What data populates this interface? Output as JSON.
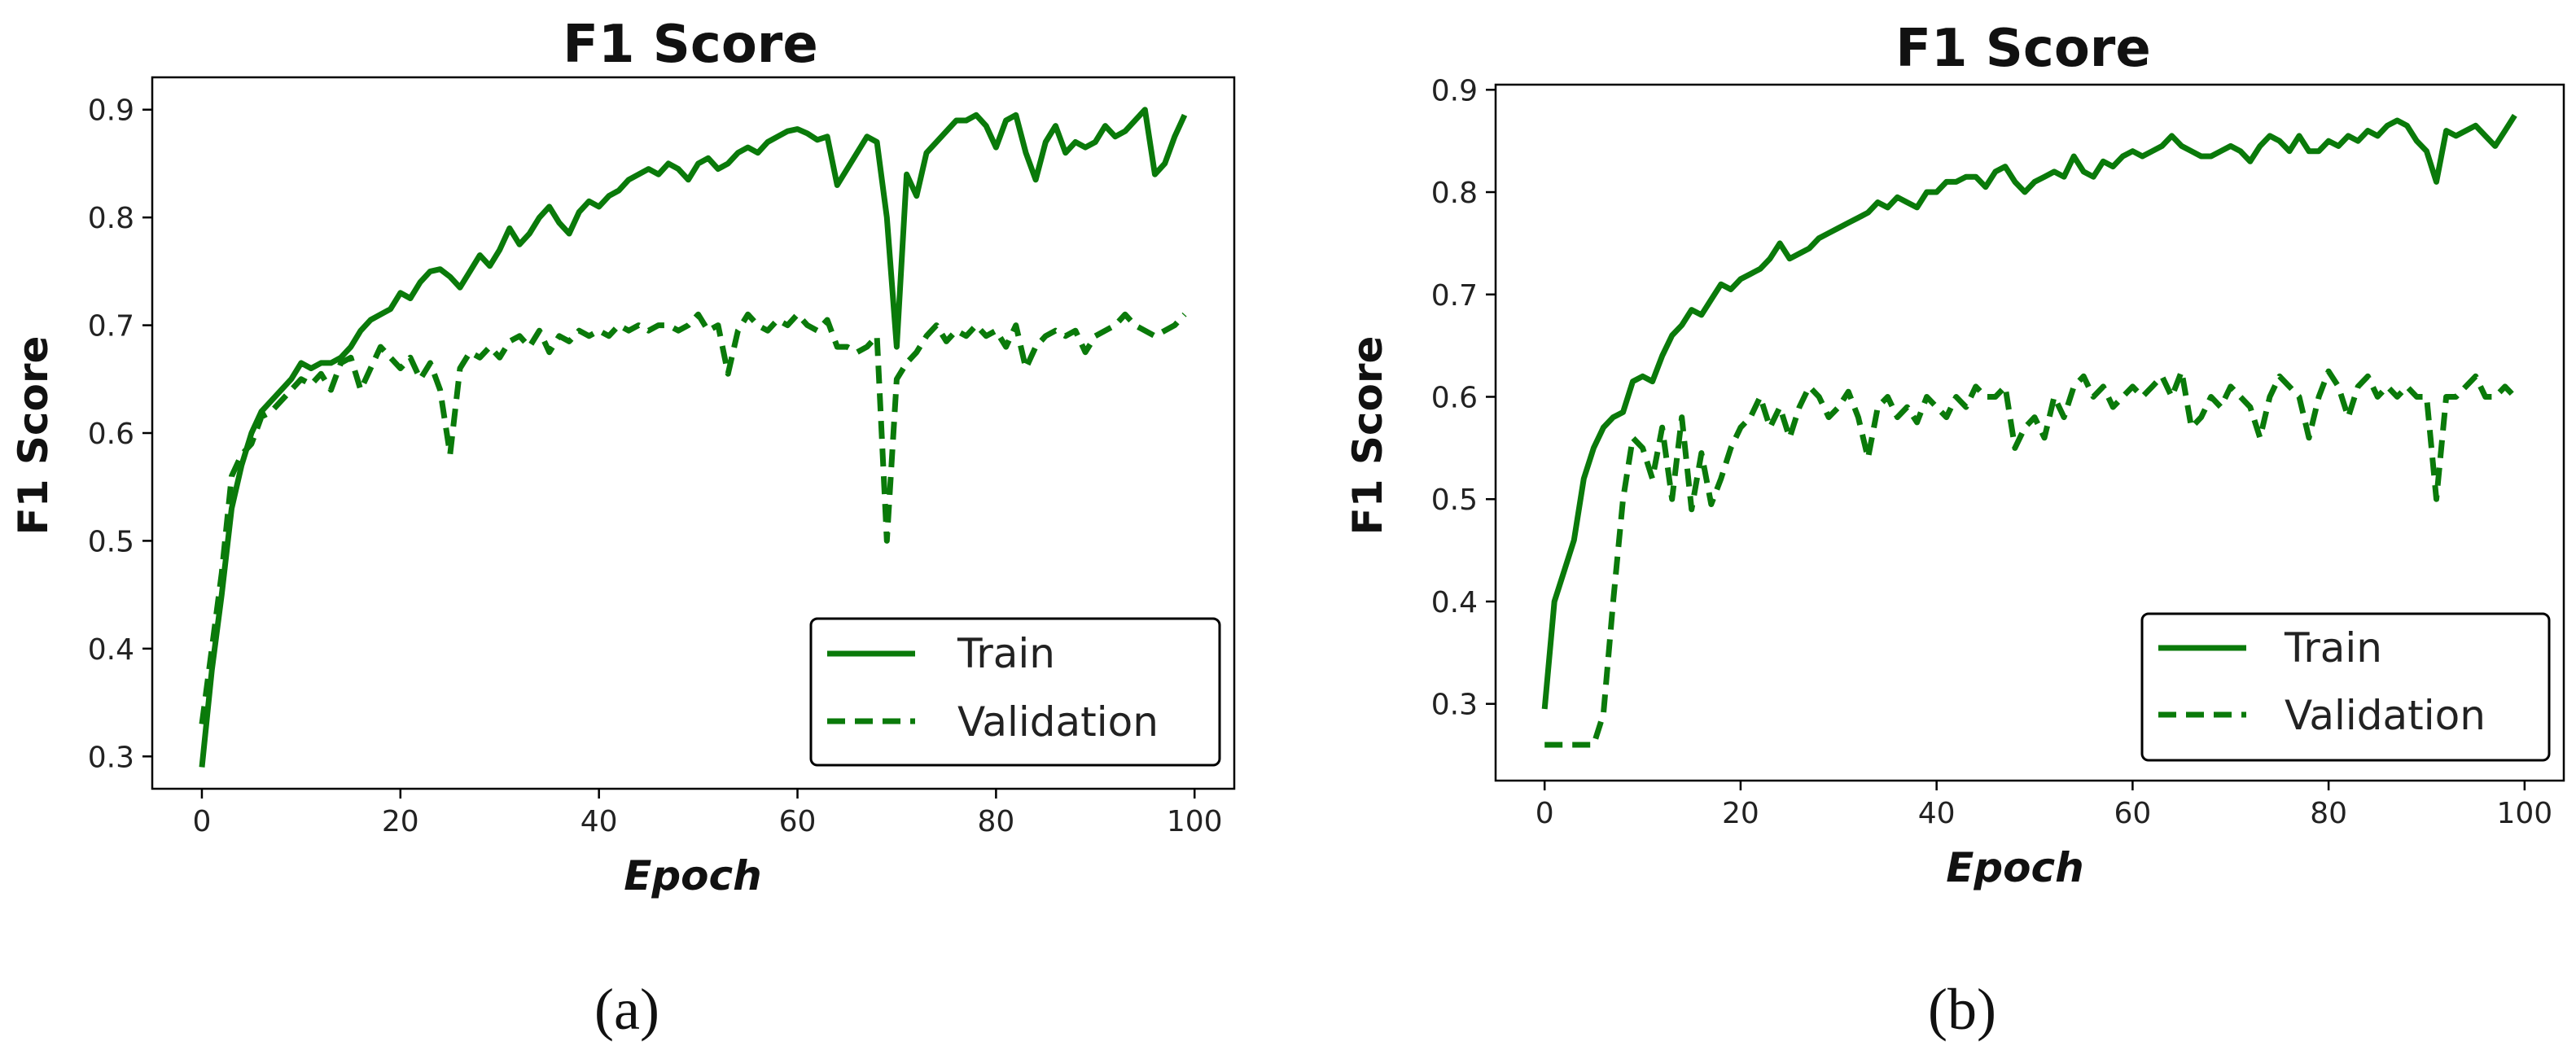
{
  "colors": {
    "train": "#0a7a0a",
    "validation": "#0a7a0a"
  },
  "chart_data": [
    {
      "type": "line",
      "title": "F1 Score",
      "xlabel": "Epoch",
      "ylabel": "F1 Score",
      "panel_label": "(a)",
      "xlim": [
        -5,
        104
      ],
      "ylim": [
        0.27,
        0.93
      ],
      "xticks": [
        0,
        20,
        40,
        60,
        80,
        100
      ],
      "yticks": [
        0.3,
        0.4,
        0.5,
        0.6,
        0.7,
        0.8,
        0.9
      ],
      "legend_position": "lower-right",
      "series": [
        {
          "name": "Train",
          "style": "solid",
          "values": [
            0.29,
            0.38,
            0.45,
            0.53,
            0.57,
            0.6,
            0.62,
            0.63,
            0.64,
            0.65,
            0.665,
            0.66,
            0.665,
            0.665,
            0.67,
            0.68,
            0.695,
            0.705,
            0.71,
            0.715,
            0.73,
            0.725,
            0.74,
            0.75,
            0.752,
            0.745,
            0.735,
            0.75,
            0.765,
            0.755,
            0.77,
            0.79,
            0.775,
            0.785,
            0.8,
            0.81,
            0.795,
            0.785,
            0.805,
            0.815,
            0.81,
            0.82,
            0.825,
            0.835,
            0.84,
            0.845,
            0.84,
            0.85,
            0.845,
            0.835,
            0.85,
            0.855,
            0.845,
            0.85,
            0.86,
            0.865,
            0.86,
            0.87,
            0.875,
            0.88,
            0.882,
            0.878,
            0.872,
            0.875,
            0.83,
            0.845,
            0.86,
            0.875,
            0.87,
            0.8,
            0.68,
            0.84,
            0.82,
            0.86,
            0.87,
            0.88,
            0.89,
            0.89,
            0.895,
            0.885,
            0.865,
            0.89,
            0.895,
            0.86,
            0.835,
            0.87,
            0.885,
            0.86,
            0.87,
            0.865,
            0.87,
            0.885,
            0.875,
            0.88,
            0.89,
            0.9,
            0.84,
            0.85,
            0.875,
            0.895
          ]
        },
        {
          "name": "Validation",
          "style": "dashed",
          "values": [
            0.33,
            0.4,
            0.47,
            0.56,
            0.58,
            0.59,
            0.615,
            0.62,
            0.63,
            0.64,
            0.65,
            0.645,
            0.655,
            0.64,
            0.665,
            0.67,
            0.64,
            0.66,
            0.68,
            0.67,
            0.66,
            0.67,
            0.65,
            0.665,
            0.64,
            0.58,
            0.66,
            0.675,
            0.67,
            0.68,
            0.67,
            0.685,
            0.69,
            0.68,
            0.695,
            0.675,
            0.69,
            0.685,
            0.695,
            0.69,
            0.695,
            0.69,
            0.7,
            0.695,
            0.7,
            0.695,
            0.7,
            0.7,
            0.695,
            0.7,
            0.71,
            0.695,
            0.7,
            0.655,
            0.695,
            0.71,
            0.7,
            0.695,
            0.705,
            0.7,
            0.71,
            0.7,
            0.695,
            0.705,
            0.68,
            0.68,
            0.675,
            0.68,
            0.69,
            0.5,
            0.65,
            0.665,
            0.675,
            0.69,
            0.7,
            0.685,
            0.695,
            0.69,
            0.7,
            0.69,
            0.695,
            0.68,
            0.7,
            0.66,
            0.68,
            0.69,
            0.695,
            0.69,
            0.695,
            0.675,
            0.69,
            0.695,
            0.7,
            0.71,
            0.7,
            0.695,
            0.69,
            0.695,
            0.7,
            0.71
          ]
        }
      ]
    },
    {
      "type": "line",
      "title": "F1 Score",
      "xlabel": "Epoch",
      "ylabel": "F1 Score",
      "panel_label": "(b)",
      "xlim": [
        -5,
        104
      ],
      "ylim": [
        0.225,
        0.905
      ],
      "xticks": [
        0,
        20,
        40,
        60,
        80,
        100
      ],
      "yticks": [
        0.3,
        0.4,
        0.5,
        0.6,
        0.7,
        0.8,
        0.9
      ],
      "legend_position": "lower-right",
      "series": [
        {
          "name": "Train",
          "style": "solid",
          "values": [
            0.295,
            0.4,
            0.43,
            0.46,
            0.52,
            0.55,
            0.57,
            0.58,
            0.585,
            0.615,
            0.62,
            0.615,
            0.64,
            0.66,
            0.67,
            0.685,
            0.68,
            0.695,
            0.71,
            0.705,
            0.715,
            0.72,
            0.725,
            0.735,
            0.75,
            0.735,
            0.74,
            0.745,
            0.755,
            0.76,
            0.765,
            0.77,
            0.775,
            0.78,
            0.79,
            0.785,
            0.795,
            0.79,
            0.785,
            0.8,
            0.8,
            0.81,
            0.81,
            0.815,
            0.815,
            0.805,
            0.82,
            0.825,
            0.81,
            0.8,
            0.81,
            0.815,
            0.82,
            0.815,
            0.835,
            0.82,
            0.815,
            0.83,
            0.825,
            0.835,
            0.84,
            0.835,
            0.84,
            0.845,
            0.855,
            0.845,
            0.84,
            0.835,
            0.835,
            0.84,
            0.845,
            0.84,
            0.83,
            0.845,
            0.855,
            0.85,
            0.84,
            0.855,
            0.84,
            0.84,
            0.85,
            0.845,
            0.855,
            0.85,
            0.86,
            0.855,
            0.865,
            0.87,
            0.865,
            0.85,
            0.84,
            0.81,
            0.86,
            0.855,
            0.86,
            0.865,
            0.855,
            0.845,
            0.86,
            0.875
          ]
        },
        {
          "name": "Validation",
          "style": "dashed",
          "values": [
            0.26,
            0.26,
            0.26,
            0.26,
            0.26,
            0.26,
            0.29,
            0.4,
            0.5,
            0.56,
            0.55,
            0.52,
            0.57,
            0.5,
            0.58,
            0.49,
            0.545,
            0.495,
            0.52,
            0.55,
            0.57,
            0.58,
            0.6,
            0.57,
            0.59,
            0.56,
            0.59,
            0.61,
            0.6,
            0.58,
            0.59,
            0.605,
            0.58,
            0.54,
            0.59,
            0.6,
            0.58,
            0.59,
            0.575,
            0.6,
            0.59,
            0.58,
            0.6,
            0.59,
            0.61,
            0.6,
            0.6,
            0.61,
            0.55,
            0.57,
            0.58,
            0.56,
            0.6,
            0.58,
            0.61,
            0.62,
            0.6,
            0.61,
            0.59,
            0.6,
            0.61,
            0.6,
            0.61,
            0.62,
            0.6,
            0.625,
            0.57,
            0.58,
            0.6,
            0.59,
            0.61,
            0.6,
            0.59,
            0.56,
            0.6,
            0.62,
            0.61,
            0.6,
            0.56,
            0.6,
            0.625,
            0.61,
            0.58,
            0.61,
            0.62,
            0.6,
            0.61,
            0.6,
            0.61,
            0.6,
            0.6,
            0.5,
            0.6,
            0.6,
            0.61,
            0.62,
            0.6,
            0.6,
            0.61,
            0.6
          ]
        }
      ]
    }
  ]
}
